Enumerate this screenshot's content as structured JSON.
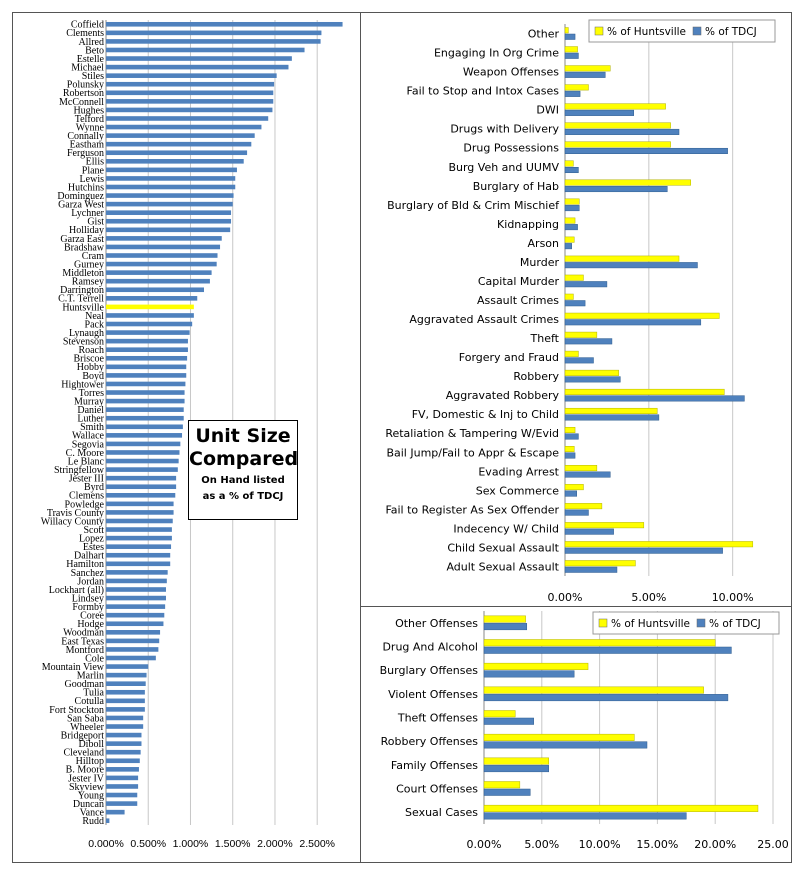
{
  "title_box": {
    "line1": "Unit Size",
    "line2": "Compared",
    "line3": "On Hand listed",
    "line4": "as a % of TDCJ"
  },
  "colors": {
    "tdcj": "#4F81BD",
    "huntsville": "#FFFF00",
    "grid": "#c8c8c8"
  },
  "chart_data": [
    {
      "type": "bar",
      "orientation": "horizontal",
      "categories": [
        "Coffield",
        "Clements",
        "Allred",
        "Beto",
        "Estelle",
        "Michael",
        "Stiles",
        "Polunsky",
        "Robertson",
        "McConnell",
        "Hughes",
        "Telford",
        "Wynne",
        "Connally",
        "Eastham",
        "Ferguson",
        "Ellis",
        "Plane",
        "Lewis",
        "Hutchins",
        "Dominguez",
        "Garza West",
        "Lychner",
        "Gist",
        "Holliday",
        "Garza East",
        "Bradshaw",
        "Cram",
        "Gurney",
        "Middleton",
        "Ramsey",
        "Darrington",
        "C.T. Terrell",
        "Huntsville",
        "Neal",
        "Pack",
        "Lynaugh",
        "Stevenson",
        "Roach",
        "Briscoe",
        "Hobby",
        "Boyd",
        "Hightower",
        "Torres",
        "Murray",
        "Daniel",
        "Luther",
        "Smith",
        "Wallace",
        "Segovia",
        "C. Moore",
        "Le Blanc",
        "Stringfellow",
        "Jester III",
        "Byrd",
        "Clemens",
        "Powledge",
        "Travis County",
        "Willacy County",
        "Scott",
        "Lopez",
        "Estes",
        "Dalhart",
        "Hamilton",
        "Sanchez",
        "Jordan",
        "Lockhart (all)",
        "Lindsey",
        "Formby",
        "Coree",
        "Hodge",
        "Woodman",
        "East Texas",
        "Montford",
        "Cole",
        "Mountain View",
        "Marlin",
        "Goodman",
        "Tulia",
        "Cotulla",
        "Fort Stockton",
        "San Saba",
        "Wheeler",
        "Bridgeport",
        "Diboll",
        "Cleveland",
        "Hilltop",
        "B. Moore",
        "Jester IV",
        "Skyview",
        "Young",
        "Duncan",
        "Vance",
        "Rudd"
      ],
      "values": [
        2.8,
        2.55,
        2.54,
        2.35,
        2.2,
        2.16,
        2.02,
        1.99,
        1.98,
        1.98,
        1.97,
        1.92,
        1.84,
        1.76,
        1.72,
        1.67,
        1.63,
        1.55,
        1.53,
        1.53,
        1.51,
        1.5,
        1.48,
        1.48,
        1.47,
        1.37,
        1.35,
        1.32,
        1.31,
        1.25,
        1.23,
        1.16,
        1.08,
        1.04,
        1.04,
        1.02,
        0.99,
        0.97,
        0.97,
        0.96,
        0.95,
        0.95,
        0.94,
        0.93,
        0.93,
        0.92,
        0.92,
        0.91,
        0.9,
        0.88,
        0.87,
        0.86,
        0.85,
        0.83,
        0.83,
        0.82,
        0.8,
        0.8,
        0.79,
        0.78,
        0.78,
        0.77,
        0.76,
        0.76,
        0.73,
        0.72,
        0.71,
        0.71,
        0.7,
        0.69,
        0.68,
        0.64,
        0.63,
        0.62,
        0.59,
        0.5,
        0.48,
        0.47,
        0.46,
        0.46,
        0.46,
        0.44,
        0.44,
        0.42,
        0.42,
        0.41,
        0.4,
        0.39,
        0.38,
        0.38,
        0.37,
        0.37,
        0.22,
        0.04
      ],
      "highlight": "Huntsville",
      "xticks": [
        "0.000%",
        "0.500%",
        "1.000%",
        "1.500%",
        "2.000%",
        "2.500%"
      ],
      "xlim": [
        0,
        2.9
      ]
    },
    {
      "type": "bar",
      "orientation": "horizontal",
      "categories": [
        "Other",
        "Engaging In Org Crime",
        "Weapon Offenses",
        "Fail to Stop and Intox Cases",
        "DWI",
        "Drugs with Delivery",
        "Drug Possessions",
        "Burg Veh and UUMV",
        "Burglary of Hab",
        "Burglary of Bld & Crim Mischief",
        "Kidnapping",
        "Arson",
        "Murder",
        "Capital Murder",
        "Assault Crimes",
        "Aggravated Assault Crimes",
        "Theft",
        "Forgery and Fraud",
        "Robbery",
        "Aggravated Robbery",
        "FV, Domestic & Inj to Child",
        "Retaliation & Tampering W/Evid",
        "Bail Jump/Fail to Appr & Escape",
        "Evading Arrest",
        "Sex Commerce",
        "Fail to Register As Sex Offender",
        "Indecency W/ Child",
        "Child Sexual Assault",
        "Adult Sexual Assault"
      ],
      "series": [
        {
          "name": "% of Huntsville",
          "values": [
            0.2,
            0.75,
            2.7,
            1.4,
            6.0,
            6.3,
            6.3,
            0.5,
            7.5,
            0.85,
            0.6,
            0.55,
            6.8,
            1.1,
            0.5,
            9.2,
            1.9,
            0.8,
            3.2,
            9.5,
            5.5,
            0.6,
            0.55,
            1.9,
            1.1,
            2.2,
            4.7,
            11.2,
            4.2
          ]
        },
        {
          "name": "% of TDCJ",
          "values": [
            0.6,
            0.8,
            2.4,
            0.9,
            4.1,
            6.8,
            9.7,
            0.8,
            6.1,
            0.85,
            0.75,
            0.4,
            7.9,
            2.5,
            1.2,
            8.1,
            2.8,
            1.7,
            3.3,
            10.7,
            5.6,
            0.8,
            0.6,
            2.7,
            0.7,
            1.4,
            2.9,
            9.4,
            3.1
          ]
        }
      ],
      "xticks": [
        "0.00%",
        "5.00%",
        "10.00%"
      ],
      "xlim": [
        0,
        13.3
      ],
      "legend": "top-right"
    },
    {
      "type": "bar",
      "orientation": "horizontal",
      "categories": [
        "Other Offenses",
        "Drug And Alcohol",
        "Burglary Offenses",
        "Violent Offenses",
        "Theft Offenses",
        "Robbery Offenses",
        "Family Offenses",
        "Court Offenses",
        "Sexual Cases"
      ],
      "series": [
        {
          "name": "% of Huntsville",
          "values": [
            3.6,
            20.0,
            9.0,
            19.0,
            2.7,
            13.0,
            5.6,
            3.1,
            23.7
          ]
        },
        {
          "name": "% of TDCJ",
          "values": [
            3.7,
            21.4,
            7.8,
            21.1,
            4.3,
            14.1,
            5.6,
            4.0,
            17.5
          ]
        }
      ],
      "xticks": [
        "0.00%",
        "5.00%",
        "10.00%",
        "15.00%",
        "20.00%",
        "25.00"
      ],
      "xlim": [
        0,
        25
      ]
    }
  ]
}
